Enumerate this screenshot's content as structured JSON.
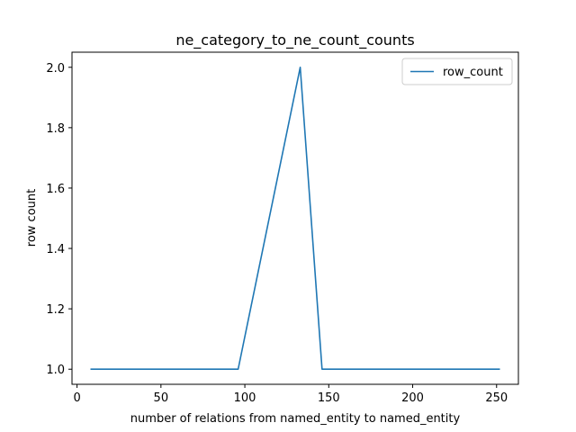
{
  "chart_data": {
    "type": "line",
    "title": "ne_category_to_ne_count_counts",
    "xlabel": "number of relations from named_entity to named_entity",
    "ylabel": "row count",
    "xlim": [
      -3,
      263
    ],
    "ylim": [
      0.95,
      2.05
    ],
    "xticks": [
      0,
      50,
      100,
      150,
      200,
      250
    ],
    "yticks": [
      1.0,
      1.2,
      1.4,
      1.6,
      1.8,
      2.0
    ],
    "xtick_labels": [
      "0",
      "50",
      "100",
      "150",
      "200",
      "250"
    ],
    "ytick_labels": [
      "1.0",
      "1.2",
      "1.4",
      "1.6",
      "1.8",
      "2.0"
    ],
    "grid": false,
    "legend_position": "top-right",
    "series": [
      {
        "name": "row_count",
        "color": "#1f77b4",
        "x": [
          8,
          96,
          133,
          146,
          252
        ],
        "y": [
          1.0,
          1.0,
          2.0,
          1.0,
          1.0
        ]
      }
    ]
  }
}
